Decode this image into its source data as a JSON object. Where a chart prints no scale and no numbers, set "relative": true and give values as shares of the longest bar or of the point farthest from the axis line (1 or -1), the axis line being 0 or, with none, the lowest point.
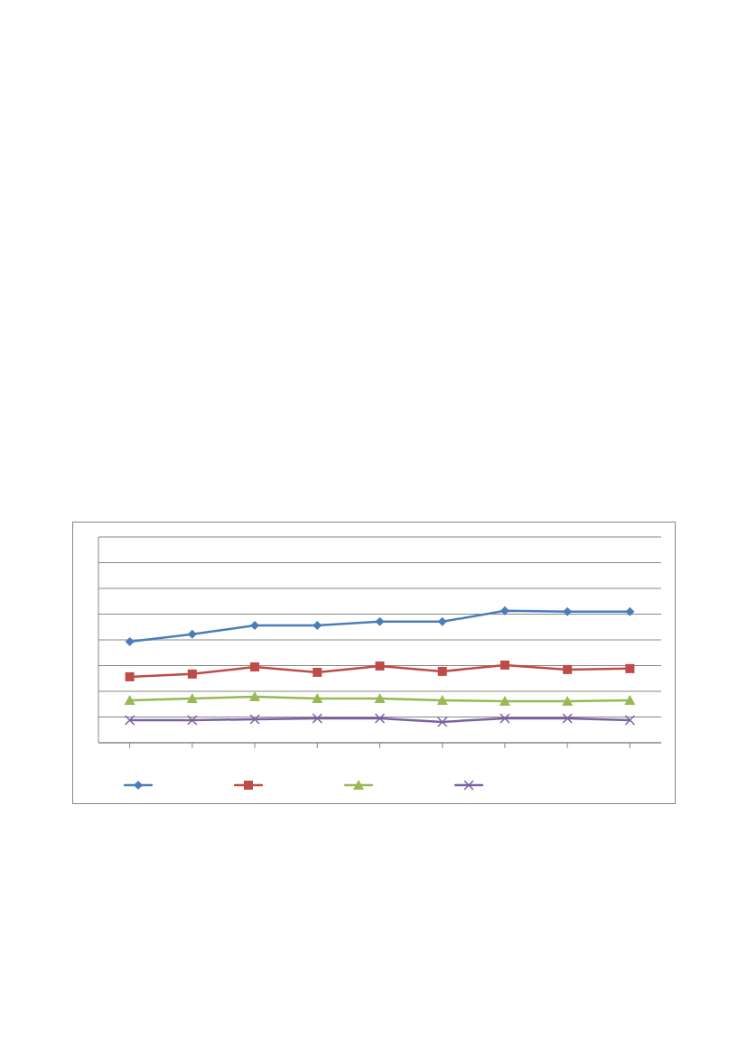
{
  "chart_data": {
    "type": "line",
    "relative": true,
    "grid": "y",
    "categories": [
      null,
      null,
      null,
      null,
      null,
      null,
      null,
      null,
      null
    ],
    "series": [
      {
        "color": "#4a7ebb",
        "marker": "diamond",
        "values": [
          0.767,
          0.822,
          0.89,
          0.89,
          0.918,
          0.918,
          1,
          0.993,
          0.993
        ]
      },
      {
        "color": "#be4b48",
        "marker": "square",
        "values": [
          0.5,
          0.521,
          0.575,
          0.534,
          0.582,
          0.541,
          0.589,
          0.555,
          0.562
        ]
      },
      {
        "color": "#98b954",
        "marker": "triangle",
        "values": [
          0.322,
          0.336,
          0.349,
          0.336,
          0.336,
          0.322,
          0.315,
          0.315,
          0.322
        ]
      },
      {
        "color": "#7d60a0",
        "marker": "cross",
        "values": [
          0.171,
          0.171,
          0.178,
          0.185,
          0.185,
          0.158,
          0.185,
          0.185,
          0.171
        ]
      }
    ]
  }
}
